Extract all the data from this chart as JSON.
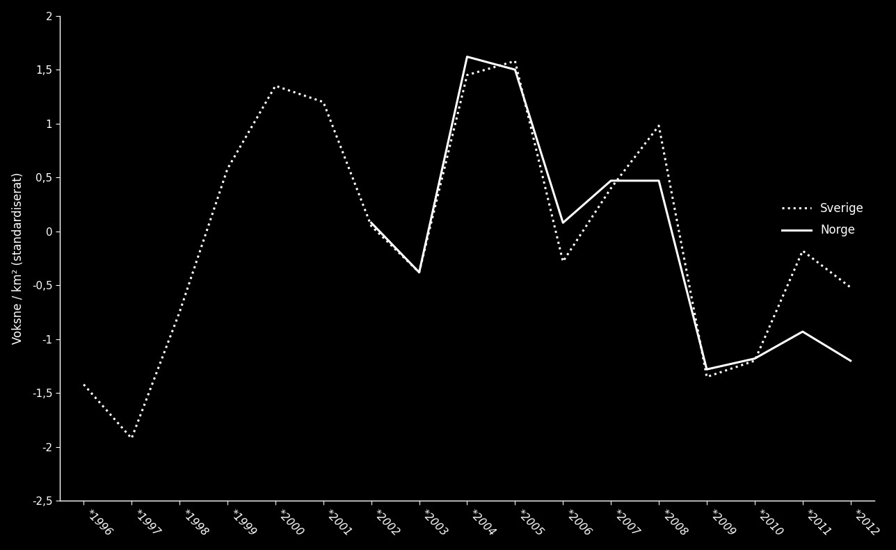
{
  "years": [
    "*1996",
    "*1997",
    "*1998",
    "*1999",
    "*2000",
    "*2001",
    "*2002",
    "*2003",
    "*2004",
    "*2005",
    "*2006",
    "*2007",
    "*2008",
    "*2009",
    "*2010",
    "*2011",
    "*2012"
  ],
  "sverige": [
    -1.42,
    -1.92,
    -0.75,
    0.58,
    1.35,
    1.2,
    0.05,
    -0.38,
    1.45,
    1.58,
    -0.28,
    0.4,
    0.98,
    -1.35,
    -1.2,
    -0.18,
    -0.52
  ],
  "norge": [
    null,
    null,
    null,
    null,
    null,
    null,
    0.08,
    -0.38,
    1.62,
    1.5,
    0.08,
    0.47,
    0.47,
    -1.28,
    -1.18,
    -0.93,
    -1.2
  ],
  "background_color": "#000000",
  "line_color_sverige": "#ffffff",
  "line_color_norge": "#ffffff",
  "ylabel": "Voksne / km² (standardiserat)",
  "ylim": [
    -2.5,
    2.0
  ],
  "yticks": [
    -2.5,
    -2.0,
    -1.5,
    -1.0,
    -0.5,
    0.0,
    0.5,
    1.0,
    1.5,
    2.0
  ],
  "legend_sverige": "Sverige",
  "legend_norge": "Norge",
  "axis_label_fontsize": 12,
  "tick_fontsize": 11,
  "legend_fontsize": 12
}
